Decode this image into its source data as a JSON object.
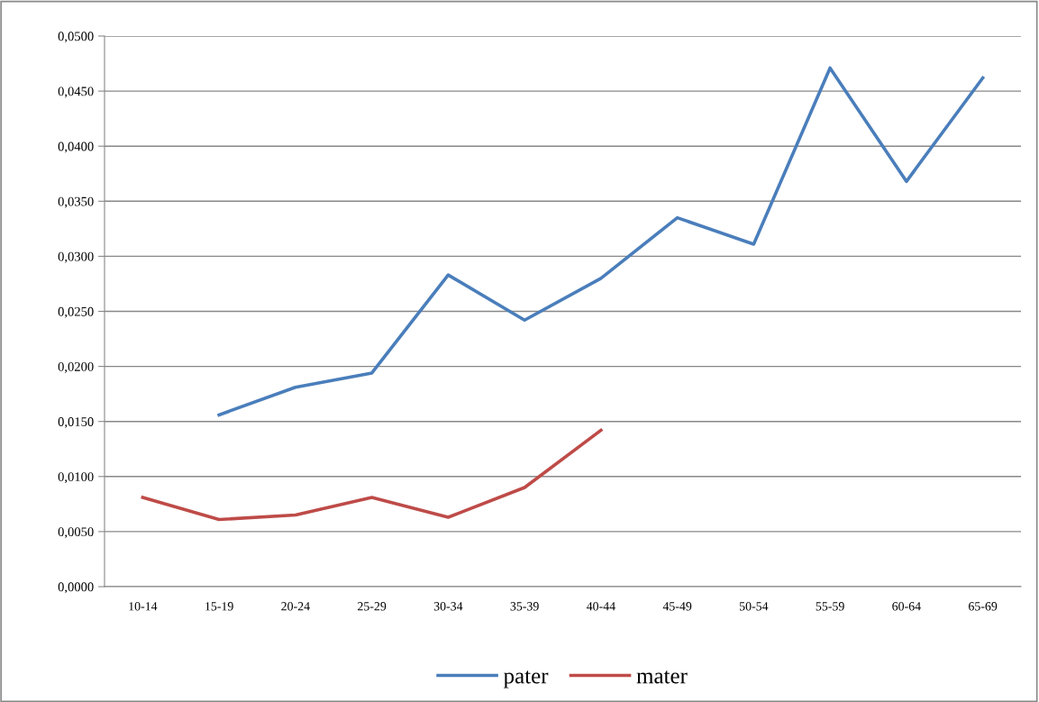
{
  "chart_data": {
    "type": "line",
    "categories": [
      "10-14",
      "15-19",
      "20-24",
      "25-29",
      "30-34",
      "35-39",
      "40-44",
      "45-49",
      "50-54",
      "55-59",
      "60-64",
      "65-69"
    ],
    "series": [
      {
        "name": "pater",
        "color": "#4a7ebb",
        "values": [
          null,
          0.0156,
          0.0181,
          0.0194,
          0.0283,
          0.0242,
          0.028,
          0.0335,
          0.0311,
          0.0471,
          0.0368,
          0.0462
        ]
      },
      {
        "name": "mater",
        "color": "#be4b48",
        "values": [
          0.0081,
          0.0061,
          0.0065,
          0.0081,
          0.0063,
          0.009,
          0.0142,
          null,
          null,
          null,
          null,
          null
        ]
      }
    ],
    "ylim": [
      0,
      0.05
    ],
    "yticks": [
      {
        "value": 0,
        "label": "0,0000"
      },
      {
        "value": 0.005,
        "label": "0,0050"
      },
      {
        "value": 0.01,
        "label": "0,0100"
      },
      {
        "value": 0.015,
        "label": "0,0150"
      },
      {
        "value": 0.02,
        "label": "0,0200"
      },
      {
        "value": 0.025,
        "label": "0,0250"
      },
      {
        "value": 0.03,
        "label": "0,0300"
      },
      {
        "value": 0.035,
        "label": "0,0350"
      },
      {
        "value": 0.04,
        "label": "0,0400"
      },
      {
        "value": 0.045,
        "label": "0,0450"
      },
      {
        "value": 0.05,
        "label": "0,0500"
      }
    ],
    "grid": "y",
    "legend": "bottom",
    "marker": "none",
    "line_style": "solid"
  }
}
